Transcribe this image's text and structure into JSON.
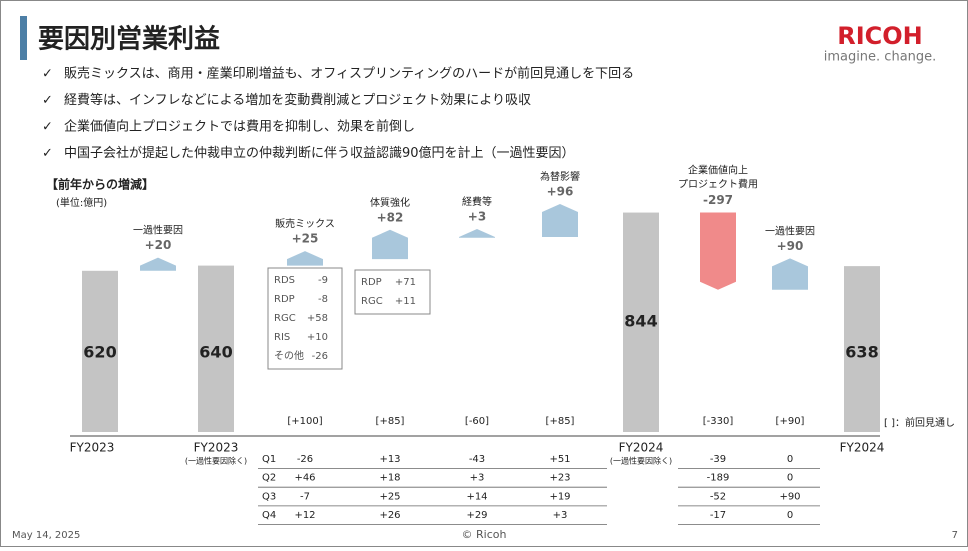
{
  "header": {
    "title": "要因別営業利益",
    "logo": "RICOH",
    "tagline": "imagine. change."
  },
  "bullets": [
    "販売ミックスは、商用・産業印刷増益も、オフィスプリンティングのハードが前回見通しを下回る",
    "経費等は、インフレなどによる増加を変動費削減とプロジェクト効果により吸収",
    "企業価値向上プロジェクトでは費用を抑制し、効果を前倒し",
    "中国子会社が提起した仲裁申立の仲裁判断に伴う収益認識90億円を計上（一過性要因）"
  ],
  "chart_data": {
    "type": "waterfall",
    "title": "【前年からの増減】",
    "subtitle": "(単位:億円)",
    "categories": [
      "FY2023",
      "一過性要因",
      "FY2023",
      "販売ミックス",
      "体質強化",
      "経費等",
      "為替影響",
      "FY2024",
      "企業価値向上",
      "一過性要因",
      "FY2024"
    ],
    "category_sublabels": [
      null,
      null,
      "(一過性要因除く)",
      null,
      null,
      null,
      null,
      "(一過性要因除く)",
      "プロジェクト費用",
      null,
      null
    ],
    "measure": [
      "total",
      "relative",
      "total",
      "relative",
      "relative",
      "relative",
      "relative",
      "total",
      "relative",
      "relative",
      "total"
    ],
    "values": [
      620,
      20,
      640,
      25,
      82,
      3,
      96,
      844,
      -297,
      90,
      638
    ],
    "value_labels": [
      "620",
      "+20",
      "640",
      "+25",
      "+82",
      "+3",
      "+96",
      "844",
      "-297",
      "+90",
      "638"
    ],
    "colors": {
      "total": "#c4c4c4",
      "increase": "#a9c7dc",
      "decrease": "#f08a8a"
    },
    "previous_forecast": [
      null,
      null,
      null,
      "[+100]",
      "[+85]",
      "[-60]",
      "[+85]",
      null,
      "[-330]",
      "[+90]",
      null
    ],
    "previous_forecast_note": "[ ]：前回見通し"
  },
  "breakdowns": [
    {
      "rows": [
        [
          "RDS",
          "-9"
        ],
        [
          "RDP",
          "-8"
        ],
        [
          "RGC",
          "+58"
        ],
        [
          "RIS",
          "+10"
        ],
        [
          "その他",
          "-26"
        ]
      ]
    },
    {
      "rows": [
        [
          "RDP",
          "+71"
        ],
        [
          "RGC",
          "+11"
        ]
      ]
    }
  ],
  "quarter_table": {
    "rows": [
      {
        "label": "Q1",
        "cells": [
          "-26",
          "+13",
          "-43",
          "+51",
          "-39",
          "0"
        ]
      },
      {
        "label": "Q2",
        "cells": [
          "+46",
          "+18",
          "+3",
          "+23",
          "-189",
          "0"
        ]
      },
      {
        "label": "Q3",
        "cells": [
          "-7",
          "+25",
          "+14",
          "+19",
          "-52",
          "+90"
        ]
      },
      {
        "label": "Q4",
        "cells": [
          "+12",
          "+26",
          "+29",
          "+3",
          "-17",
          "0"
        ]
      }
    ]
  },
  "footer": {
    "date": "May 14, 2025",
    "copyright": "© Ricoh",
    "page": "7"
  }
}
